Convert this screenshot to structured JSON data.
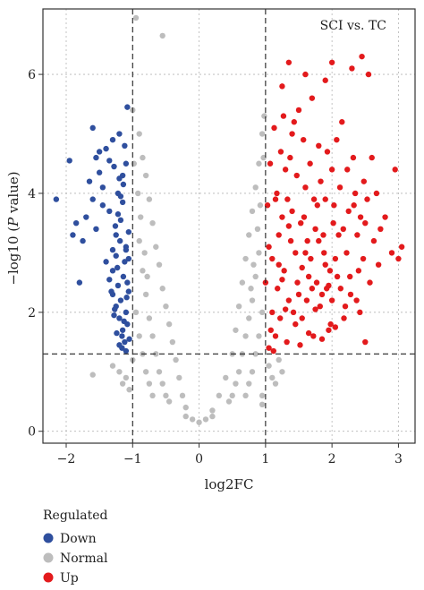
{
  "chart_data": {
    "type": "scatter",
    "title": "SCI vs. TC",
    "xlabel": "log2FC",
    "ylabel_prefix": "−log10 (",
    "ylabel_italic": "P",
    "ylabel_suffix": " value)",
    "xlim": [
      -2.35,
      3.25
    ],
    "ylim": [
      -0.2,
      7.1
    ],
    "x_ticks": [
      -2,
      -1,
      0,
      1,
      2,
      3
    ],
    "x_tick_labels": [
      "−2",
      "−1",
      "0",
      "1",
      "2",
      "3"
    ],
    "y_ticks": [
      0,
      2,
      4,
      6
    ],
    "y_tick_labels": [
      "0",
      "2",
      "4",
      "6"
    ],
    "grid": true,
    "fc_thresholds": [
      -1,
      1
    ],
    "p_threshold": 1.3,
    "legend": {
      "title": "Regulated",
      "placement": "bottom-left",
      "entries": [
        {
          "label": "Down",
          "color": "#2f4f9e"
        },
        {
          "label": "Normal",
          "color": "#bdbdbd"
        },
        {
          "label": "Up",
          "color": "#e31a1c"
        }
      ]
    },
    "series": [
      {
        "name": "Down",
        "color": "#2f4f9e",
        "points": [
          [
            -2.15,
            3.9
          ],
          [
            -1.95,
            4.55
          ],
          [
            -1.85,
            3.5
          ],
          [
            -1.75,
            3.2
          ],
          [
            -1.7,
            3.6
          ],
          [
            -1.65,
            4.2
          ],
          [
            -1.6,
            3.9
          ],
          [
            -1.55,
            4.6
          ],
          [
            -1.5,
            4.35
          ],
          [
            -1.45,
            4.1
          ],
          [
            -1.4,
            4.75
          ],
          [
            -1.35,
            3.7
          ],
          [
            -1.3,
            4.9
          ],
          [
            -1.28,
            4.45
          ],
          [
            -1.25,
            3.3
          ],
          [
            -1.22,
            4.0
          ],
          [
            -1.2,
            5.0
          ],
          [
            -1.18,
            3.55
          ],
          [
            -1.15,
            4.3
          ],
          [
            -1.12,
            4.8
          ],
          [
            -1.1,
            3.1
          ],
          [
            -1.08,
            5.45
          ],
          [
            -1.6,
            5.1
          ],
          [
            -1.5,
            4.7
          ],
          [
            -1.8,
            2.5
          ],
          [
            -1.9,
            3.3
          ],
          [
            -1.55,
            3.4
          ],
          [
            -1.45,
            3.8
          ],
          [
            -1.35,
            4.55
          ],
          [
            -1.3,
            3.05
          ],
          [
            -1.2,
            4.25
          ],
          [
            -1.15,
            3.85
          ],
          [
            -1.4,
            2.85
          ],
          [
            -1.35,
            2.55
          ],
          [
            -1.3,
            2.3
          ],
          [
            -1.25,
            2.1
          ],
          [
            -1.2,
            1.9
          ],
          [
            -1.15,
            1.7
          ],
          [
            -1.12,
            1.5
          ],
          [
            -1.1,
            1.35
          ],
          [
            -1.3,
            2.7
          ],
          [
            -1.25,
            2.95
          ],
          [
            -1.22,
            2.45
          ],
          [
            -1.18,
            2.2
          ],
          [
            -1.14,
            2.6
          ],
          [
            -1.1,
            2.0
          ],
          [
            -1.08,
            1.8
          ],
          [
            -1.06,
            2.35
          ],
          [
            -1.28,
            1.95
          ],
          [
            -1.24,
            1.65
          ],
          [
            -1.2,
            1.45
          ],
          [
            -1.16,
            1.6
          ],
          [
            -1.12,
            2.85
          ],
          [
            -1.1,
            3.05
          ],
          [
            -1.08,
            2.5
          ],
          [
            -1.05,
            1.55
          ],
          [
            -1.32,
            2.35
          ],
          [
            -1.27,
            2.05
          ],
          [
            -1.23,
            2.75
          ],
          [
            -1.19,
            3.2
          ],
          [
            -1.16,
            1.4
          ],
          [
            -1.13,
            1.85
          ],
          [
            -1.09,
            2.25
          ],
          [
            -1.06,
            2.9
          ],
          [
            -1.26,
            3.45
          ],
          [
            -1.22,
            3.65
          ],
          [
            -1.18,
            3.95
          ],
          [
            -1.14,
            4.15
          ],
          [
            -1.1,
            4.5
          ],
          [
            -1.06,
            3.35
          ]
        ]
      },
      {
        "name": "Up",
        "color": "#e31a1c",
        "points": [
          [
            1.0,
            2.5
          ],
          [
            1.05,
            3.1
          ],
          [
            1.1,
            2.0
          ],
          [
            1.15,
            1.6
          ],
          [
            1.2,
            2.8
          ],
          [
            1.25,
            3.6
          ],
          [
            1.3,
            4.4
          ],
          [
            1.35,
            2.2
          ],
          [
            1.4,
            5.0
          ],
          [
            1.45,
            3.0
          ],
          [
            1.5,
            5.4
          ],
          [
            1.55,
            1.9
          ],
          [
            1.6,
            4.1
          ],
          [
            1.65,
            2.6
          ],
          [
            1.7,
            5.6
          ],
          [
            1.75,
            3.4
          ],
          [
            1.8,
            4.8
          ],
          [
            1.85,
            2.3
          ],
          [
            1.9,
            3.9
          ],
          [
            1.95,
            1.7
          ],
          [
            2.0,
            4.4
          ],
          [
            2.05,
            2.9
          ],
          [
            2.1,
            3.3
          ],
          [
            2.15,
            5.2
          ],
          [
            2.2,
            2.1
          ],
          [
            2.25,
            3.7
          ],
          [
            2.3,
            6.1
          ],
          [
            2.35,
            4.0
          ],
          [
            2.4,
            2.7
          ],
          [
            2.45,
            6.3
          ],
          [
            2.5,
            3.5
          ],
          [
            2.55,
            6.0
          ],
          [
            2.6,
            4.6
          ],
          [
            2.7,
            2.8
          ],
          [
            2.8,
            3.6
          ],
          [
            2.9,
            3.0
          ],
          [
            3.0,
            2.9
          ],
          [
            3.05,
            3.1
          ],
          [
            2.95,
            4.4
          ],
          [
            2.5,
            1.5
          ],
          [
            1.35,
            6.2
          ],
          [
            1.25,
            5.8
          ],
          [
            2.0,
            6.2
          ],
          [
            1.9,
            5.9
          ],
          [
            1.6,
            6.0
          ],
          [
            1.05,
            1.4
          ],
          [
            1.08,
            1.7
          ],
          [
            1.12,
            1.35
          ],
          [
            1.18,
            2.4
          ],
          [
            1.22,
            1.9
          ],
          [
            1.28,
            2.7
          ],
          [
            1.32,
            1.5
          ],
          [
            1.38,
            3.2
          ],
          [
            1.42,
            2.0
          ],
          [
            1.48,
            2.5
          ],
          [
            1.52,
            1.45
          ],
          [
            1.58,
            3.6
          ],
          [
            1.62,
            2.2
          ],
          [
            1.68,
            2.9
          ],
          [
            1.72,
            1.6
          ],
          [
            1.78,
            3.8
          ],
          [
            1.82,
            2.1
          ],
          [
            1.88,
            3.0
          ],
          [
            1.92,
            2.4
          ],
          [
            1.98,
            1.8
          ],
          [
            2.02,
            3.5
          ],
          [
            2.08,
            2.6
          ],
          [
            2.12,
            4.1
          ],
          [
            2.18,
            1.9
          ],
          [
            2.22,
            3.0
          ],
          [
            2.28,
            2.3
          ],
          [
            2.32,
            4.6
          ],
          [
            2.38,
            3.3
          ],
          [
            2.42,
            2.0
          ],
          [
            2.48,
            4.2
          ],
          [
            1.03,
            3.8
          ],
          [
            1.07,
            4.5
          ],
          [
            1.13,
            5.1
          ],
          [
            1.17,
            4.0
          ],
          [
            1.23,
            4.7
          ],
          [
            1.27,
            5.3
          ],
          [
            1.33,
            3.9
          ],
          [
            1.37,
            4.6
          ],
          [
            1.43,
            5.2
          ],
          [
            1.47,
            4.3
          ],
          [
            1.53,
            3.5
          ],
          [
            1.57,
            4.9
          ],
          [
            1.63,
            3.2
          ],
          [
            1.67,
            4.5
          ],
          [
            1.73,
            3.9
          ],
          [
            1.77,
            2.5
          ],
          [
            1.83,
            4.2
          ],
          [
            1.87,
            3.3
          ],
          [
            1.93,
            4.7
          ],
          [
            1.97,
            2.7
          ],
          [
            2.03,
            3.8
          ],
          [
            2.07,
            4.9
          ],
          [
            2.13,
            2.4
          ],
          [
            2.17,
            3.4
          ],
          [
            2.23,
            4.4
          ],
          [
            2.27,
            2.6
          ],
          [
            2.33,
            3.8
          ],
          [
            2.37,
            2.2
          ],
          [
            2.43,
            3.6
          ],
          [
            2.47,
            2.9
          ],
          [
            2.53,
            3.9
          ],
          [
            2.57,
            2.5
          ],
          [
            2.63,
            3.2
          ],
          [
            2.67,
            4.0
          ],
          [
            2.73,
            3.4
          ],
          [
            1.1,
            2.9
          ],
          [
            1.2,
            3.3
          ],
          [
            1.3,
            2.05
          ],
          [
            1.4,
            3.7
          ],
          [
            1.5,
            2.3
          ],
          [
            1.6,
            3.0
          ],
          [
            1.7,
            2.4
          ],
          [
            1.8,
            3.2
          ],
          [
            1.9,
            2.8
          ],
          [
            2.0,
            2.2
          ],
          [
            1.15,
            3.9
          ],
          [
            1.25,
            2.55
          ],
          [
            1.35,
            3.45
          ],
          [
            1.45,
            1.8
          ],
          [
            1.55,
            2.75
          ],
          [
            1.65,
            1.65
          ],
          [
            1.75,
            2.05
          ],
          [
            1.85,
            1.55
          ],
          [
            1.95,
            2.45
          ],
          [
            2.05,
            1.75
          ]
        ]
      },
      {
        "name": "Normal",
        "color": "#bdbdbd",
        "points": [
          [
            -0.95,
            6.95
          ],
          [
            -0.55,
            6.65
          ],
          [
            -1.0,
            5.4
          ],
          [
            -0.9,
            5.0
          ],
          [
            -0.85,
            4.6
          ],
          [
            -0.8,
            4.3
          ],
          [
            -0.75,
            3.9
          ],
          [
            -0.7,
            3.5
          ],
          [
            -0.65,
            3.1
          ],
          [
            -0.6,
            2.8
          ],
          [
            -0.55,
            2.4
          ],
          [
            -0.5,
            2.1
          ],
          [
            -0.45,
            1.8
          ],
          [
            -0.4,
            1.5
          ],
          [
            -0.35,
            1.2
          ],
          [
            -0.3,
            0.9
          ],
          [
            -0.25,
            0.6
          ],
          [
            -0.2,
            0.4
          ],
          [
            -0.1,
            0.2
          ],
          [
            0.0,
            0.15
          ],
          [
            0.1,
            0.2
          ],
          [
            0.2,
            0.35
          ],
          [
            0.3,
            0.6
          ],
          [
            0.4,
            0.9
          ],
          [
            0.5,
            1.3
          ],
          [
            0.55,
            1.7
          ],
          [
            0.6,
            2.1
          ],
          [
            0.65,
            2.5
          ],
          [
            0.7,
            2.9
          ],
          [
            0.75,
            3.3
          ],
          [
            0.8,
            3.7
          ],
          [
            0.85,
            4.1
          ],
          [
            0.9,
            4.5
          ],
          [
            0.95,
            5.0
          ],
          [
            0.98,
            5.3
          ],
          [
            -1.3,
            1.1
          ],
          [
            -1.1,
            0.9
          ],
          [
            -1.0,
            1.2
          ],
          [
            -1.05,
            0.7
          ],
          [
            1.05,
            1.1
          ],
          [
            1.1,
            0.9
          ],
          [
            1.2,
            1.2
          ],
          [
            0.95,
            0.6
          ],
          [
            -0.9,
            3.2
          ],
          [
            -0.85,
            2.7
          ],
          [
            -0.8,
            2.3
          ],
          [
            -0.75,
            1.9
          ],
          [
            -0.7,
            1.6
          ],
          [
            -0.65,
            1.3
          ],
          [
            -0.6,
            1.0
          ],
          [
            -0.55,
            0.8
          ],
          [
            -0.5,
            0.6
          ],
          [
            -0.45,
            0.5
          ],
          [
            -0.95,
            2.0
          ],
          [
            -0.9,
            1.6
          ],
          [
            -0.85,
            1.3
          ],
          [
            -0.8,
            1.0
          ],
          [
            -0.75,
            0.8
          ],
          [
            -0.7,
            0.6
          ],
          [
            0.9,
            3.0
          ],
          [
            0.85,
            2.6
          ],
          [
            0.8,
            2.2
          ],
          [
            0.75,
            1.9
          ],
          [
            0.7,
            1.6
          ],
          [
            0.65,
            1.3
          ],
          [
            0.6,
            1.0
          ],
          [
            0.55,
            0.8
          ],
          [
            0.5,
            0.6
          ],
          [
            0.45,
            0.5
          ],
          [
            0.95,
            2.0
          ],
          [
            0.9,
            1.6
          ],
          [
            0.85,
            1.3
          ],
          [
            0.8,
            1.0
          ],
          [
            0.75,
            0.8
          ],
          [
            0.7,
            0.6
          ],
          [
            0.2,
            0.25
          ],
          [
            -0.2,
            0.25
          ],
          [
            -0.92,
            4.0
          ],
          [
            -0.88,
            3.6
          ],
          [
            -0.82,
            3.0
          ],
          [
            -0.78,
            2.6
          ],
          [
            0.92,
            3.8
          ],
          [
            0.88,
            3.4
          ],
          [
            0.82,
            2.8
          ],
          [
            0.78,
            2.4
          ],
          [
            -1.15,
            0.8
          ],
          [
            -1.2,
            1.0
          ],
          [
            1.15,
            0.8
          ],
          [
            1.25,
            1.0
          ],
          [
            -1.6,
            0.95
          ],
          [
            0.95,
            0.45
          ],
          [
            -0.98,
            4.5
          ],
          [
            0.97,
            4.6
          ]
        ]
      }
    ]
  }
}
